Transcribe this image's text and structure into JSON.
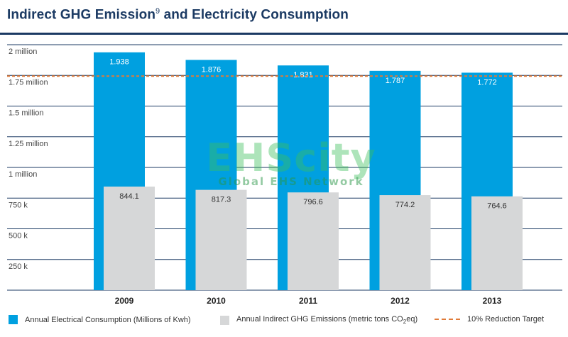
{
  "title": {
    "main": "Indirect GHG Emission",
    "sup": "9",
    "rest": " and Electricity Consumption"
  },
  "watermark": {
    "text": "EHScity",
    "subtext": "Global EHS Network"
  },
  "colors": {
    "primary": "#00a0e0",
    "secondary": "#d6d7d8",
    "target": "#e07b39",
    "grid": "#1b3a63"
  },
  "chart_data": {
    "type": "bar",
    "title": "Indirect GHG Emission⁹ and Electricity Consumption",
    "xlabel": "",
    "ylabel": "",
    "categories": [
      "2009",
      "2010",
      "2011",
      "2012",
      "2013"
    ],
    "y_ticks": [
      {
        "value": 250000,
        "label": "250 k"
      },
      {
        "value": 500000,
        "label": "500 k"
      },
      {
        "value": 750000,
        "label": "750 k"
      },
      {
        "value": 1000000,
        "label": "1 million"
      },
      {
        "value": 1250000,
        "label": "1.25 million"
      },
      {
        "value": 1500000,
        "label": "1.5 million"
      },
      {
        "value": 1750000,
        "label": "1.75 million"
      },
      {
        "value": 2000000,
        "label": "2 million"
      }
    ],
    "ylim": [
      0,
      2000000
    ],
    "grid": true,
    "legend_position": "bottom",
    "series": [
      {
        "name": "Annual Electrical Consumption (Millions of Kwh)",
        "values": [
          1938000,
          1876000,
          1831000,
          1787000,
          1772000
        ],
        "labels": [
          "1.938",
          "1.876",
          "1.831",
          "1.787",
          "1.772"
        ]
      },
      {
        "name": "Annual Indirect GHG Emissions (metric tons CO2eq)",
        "values": [
          844100,
          817300,
          796600,
          774200,
          764600
        ],
        "labels": [
          "844.1",
          "817.3",
          "796.6",
          "774.2",
          "764.6"
        ]
      }
    ],
    "reference_line": {
      "name": "10% Reduction Target",
      "value": 1744200,
      "style": "dashed"
    }
  },
  "legend": {
    "series1": "Annual Electrical Consumption (Millions of Kwh)",
    "series2_prefix": "Annual Indirect GHG Emissions (metric tons CO",
    "series2_sub": "2",
    "series2_suffix": "eq)",
    "target": "10% Reduction Target"
  }
}
